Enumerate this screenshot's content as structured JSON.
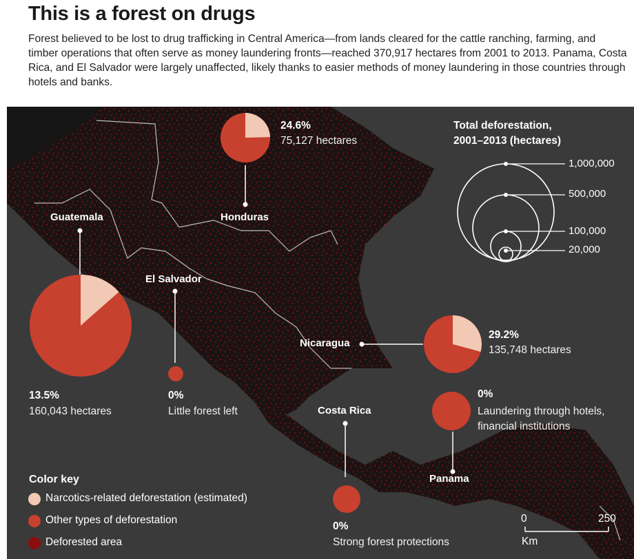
{
  "title": "This is a forest on drugs",
  "subtitle": "Forest believed to be lost to drug trafficking in Central America—from lands cleared for the cattle ranching, farming, and timber operations that often serve as money laundering fronts—reached 370,917 hectares from 2001 to 2013. Panama, Costa Rica, and El Salvador were largely unaffected, likely thanks to easier methods of money laundering in those countries through hotels and banks.",
  "colors": {
    "narcotics": "#f2c9b4",
    "other": "#c8402e",
    "deforested": "#8b0d0d",
    "map_bg": "#3a3a3a",
    "land": "#1a1a1a"
  },
  "countries": {
    "guatemala": {
      "name": "Guatemala",
      "pct": "13.5%",
      "detail": "160,043 hectares",
      "narcotics_share": 0.135
    },
    "honduras": {
      "name": "Honduras",
      "pct": "24.6%",
      "detail": "75,127 hectares",
      "narcotics_share": 0.246
    },
    "el_salvador": {
      "name": "El Salvador",
      "pct": "0%",
      "detail": "Little forest left",
      "narcotics_share": 0
    },
    "nicaragua": {
      "name": "Nicaragua",
      "pct": "29.2%",
      "detail": "135,748 hectares",
      "narcotics_share": 0.292
    },
    "costa_rica": {
      "name": "Costa Rica",
      "pct": "0%",
      "detail": "Strong forest protections",
      "narcotics_share": 0
    },
    "panama": {
      "name": "Panama",
      "pct": "0%",
      "detail_line1": "Laundering through hotels,",
      "detail_line2": "financial institutions",
      "narcotics_share": 0
    }
  },
  "size_legend": {
    "title_line1": "Total deforestation,",
    "title_line2": "2001–2013 (hectares)",
    "values": [
      "1,000,000",
      "500,000",
      "100,000",
      "20,000"
    ]
  },
  "color_key": {
    "title": "Color key",
    "items": [
      {
        "label": "Narcotics-related deforestation (estimated)"
      },
      {
        "label": "Other types of deforestation"
      },
      {
        "label": "Deforested area"
      }
    ]
  },
  "scale_bar": {
    "start": "0",
    "end": "250",
    "unit": "Km"
  }
}
